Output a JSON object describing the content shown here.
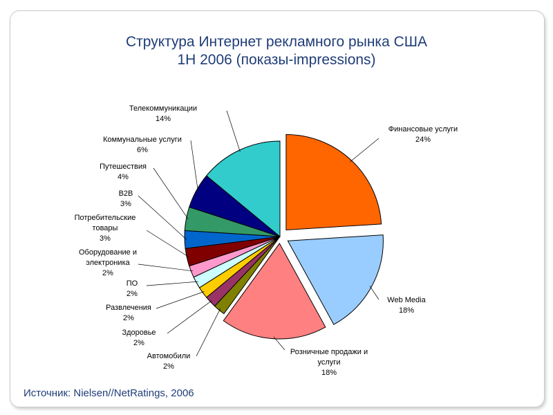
{
  "title": "Структура Интернет рекламного рынка США",
  "subtitle": "1Н 2006 (показы-impressions)",
  "source": "Источник: Nielsen//NetRatings, 2006",
  "chart_data": {
    "type": "pie",
    "legend": "none",
    "slices": [
      {
        "label_lines": [
          "Финансовые услуги"
        ],
        "pct_text": "24%",
        "value": 24,
        "color": "#ff6600"
      },
      {
        "label_lines": [
          "Web Media"
        ],
        "pct_text": "18%",
        "value": 18,
        "color": "#99ccff"
      },
      {
        "label_lines": [
          "Розничные продажи и",
          "услуги"
        ],
        "pct_text": "18%",
        "value": 18,
        "color": "#ff8080"
      },
      {
        "label_lines": [
          "Автомобили"
        ],
        "pct_text": "2%",
        "value": 2,
        "color": "#808000"
      },
      {
        "label_lines": [
          "Здоровье"
        ],
        "pct_text": "2%",
        "value": 2,
        "color": "#993366"
      },
      {
        "label_lines": [
          "Развлечения"
        ],
        "pct_text": "2%",
        "value": 2,
        "color": "#ffcc00"
      },
      {
        "label_lines": [
          "ПО"
        ],
        "pct_text": "2%",
        "value": 2,
        "color": "#ccffff"
      },
      {
        "label_lines": [
          "Оборудование и",
          "электроника"
        ],
        "pct_text": "2%",
        "value": 2,
        "color": "#ff99cc"
      },
      {
        "label_lines": [
          "Потребительские",
          "товары"
        ],
        "pct_text": "3%",
        "value": 3,
        "color": "#800000"
      },
      {
        "label_lines": [
          "B2B"
        ],
        "pct_text": "3%",
        "value": 3,
        "color": "#0066cc"
      },
      {
        "label_lines": [
          "Путешествия"
        ],
        "pct_text": "4%",
        "value": 4,
        "color": "#339966"
      },
      {
        "label_lines": [
          "Коммунальные услуги"
        ],
        "pct_text": "6%",
        "value": 6,
        "color": "#000080"
      },
      {
        "label_lines": [
          "Телекоммуникации"
        ],
        "pct_text": "14%",
        "value": 14,
        "color": "#33cccc"
      }
    ]
  }
}
